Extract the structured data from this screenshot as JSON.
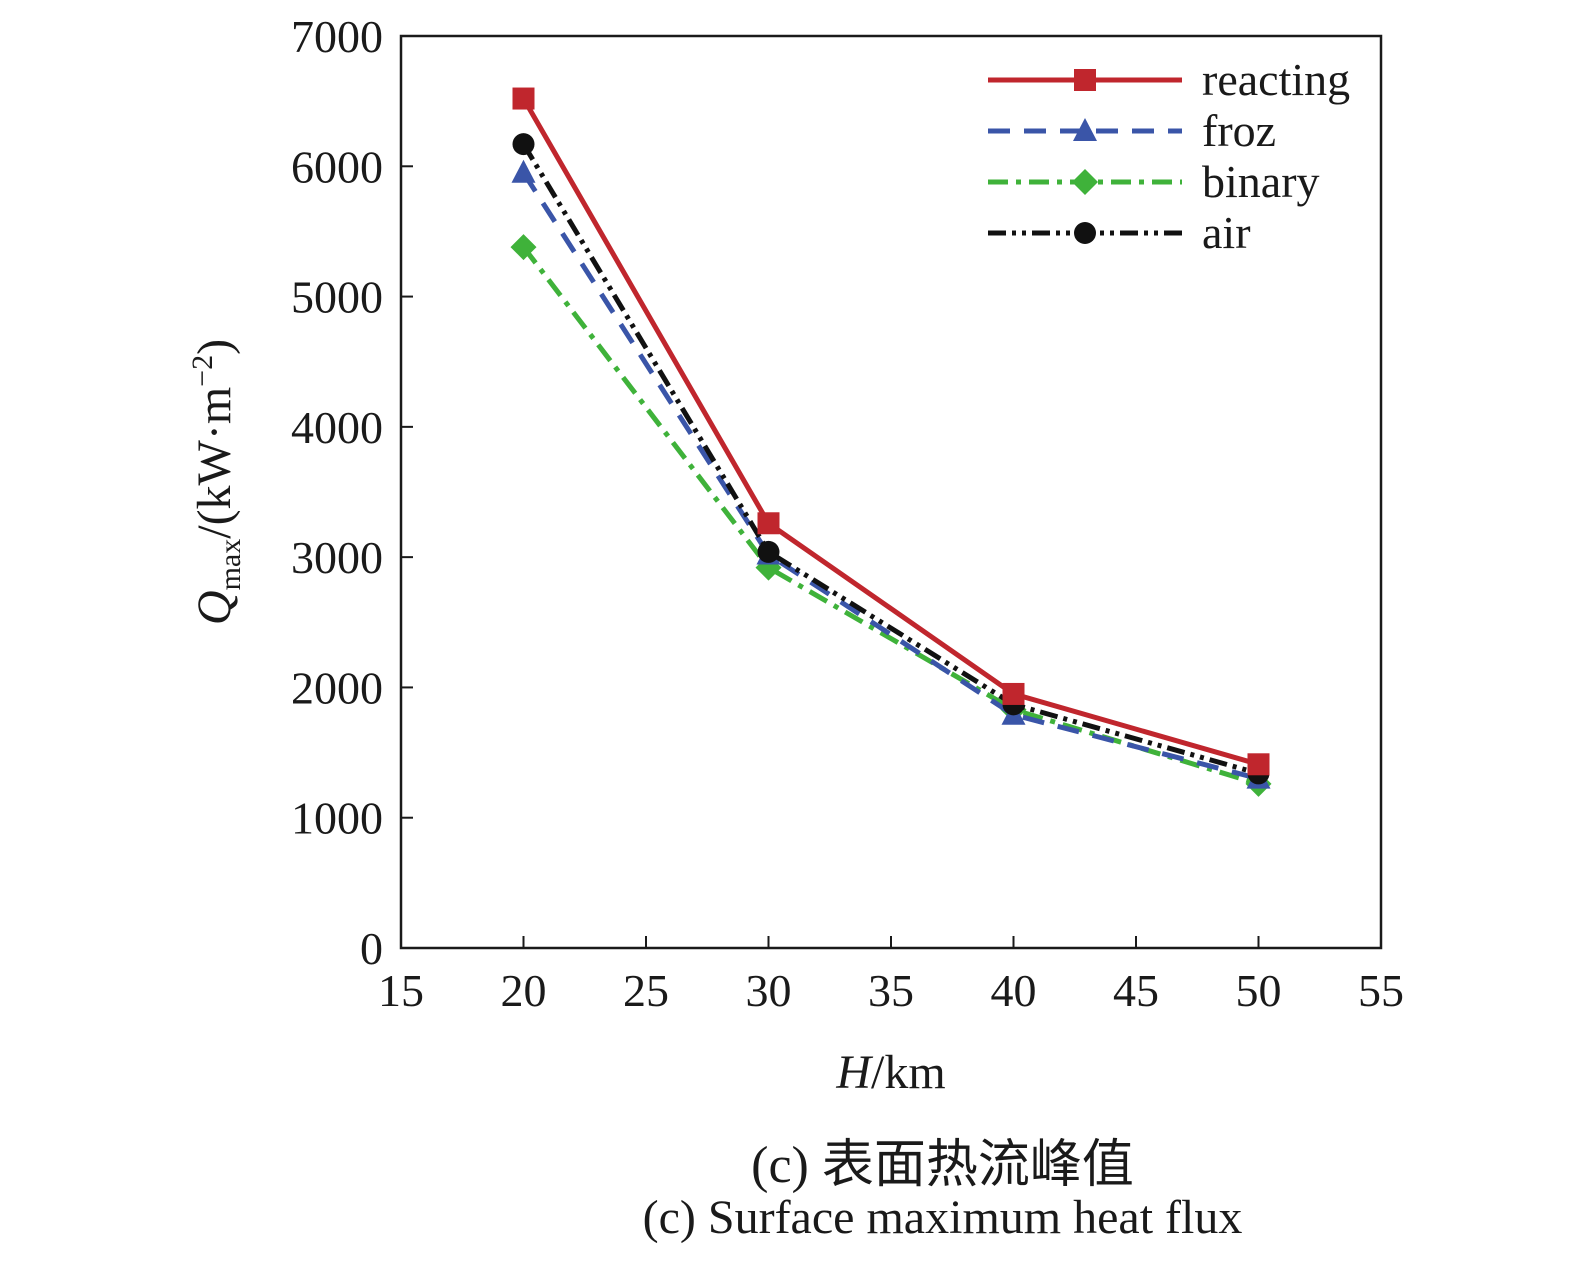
{
  "chart_data": {
    "type": "line",
    "xlabel": "H/km",
    "ylabel": "Qmax/(kW·m−2)",
    "xlim": [
      15,
      55
    ],
    "ylim": [
      0,
      7000
    ],
    "xticks": [
      "15",
      "20",
      "25",
      "30",
      "35",
      "40",
      "45",
      "50",
      "55"
    ],
    "yticks": [
      "0",
      "1000",
      "2000",
      "3000",
      "4000",
      "5000",
      "6000",
      "7000"
    ],
    "legend_position": "top-right",
    "grid": false,
    "x": [
      20,
      30,
      40,
      50
    ],
    "series": [
      {
        "name": "reacting",
        "values": [
          6520,
          3260,
          1950,
          1410
        ],
        "color": "#c0262d",
        "dash": "solid",
        "marker": "square"
      },
      {
        "name": "froz",
        "values": [
          5950,
          3020,
          1790,
          1300
        ],
        "color": "#3a55a8",
        "dash": "dash",
        "marker": "triangle"
      },
      {
        "name": "binary",
        "values": [
          5380,
          2920,
          1830,
          1260
        ],
        "color": "#3fb23a",
        "dash": "dashdot",
        "marker": "diamond"
      },
      {
        "name": "air",
        "values": [
          6170,
          3040,
          1870,
          1340
        ],
        "color": "#111111",
        "dash": "dashdotdot",
        "marker": "circle"
      }
    ]
  },
  "captions": {
    "cn": "(c) 表面热流峰值",
    "en": "(c) Surface maximum heat flux"
  }
}
